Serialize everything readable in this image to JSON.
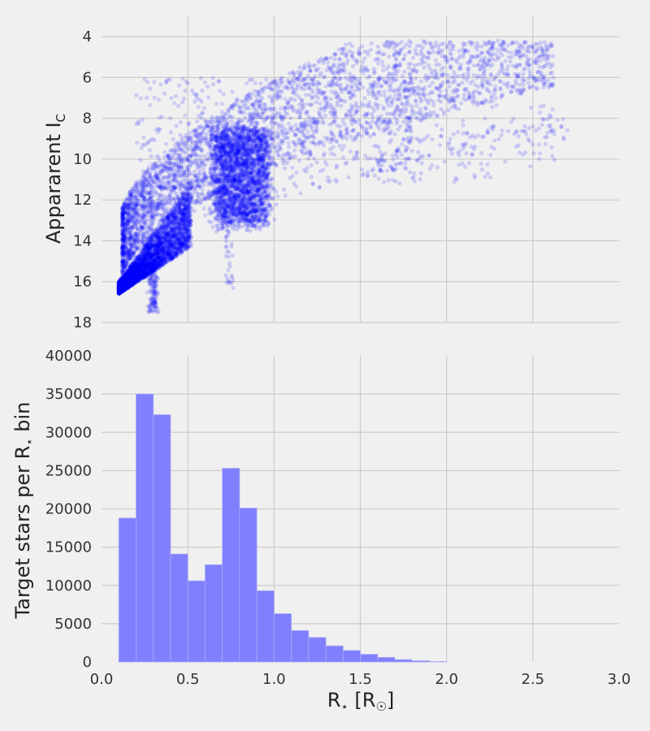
{
  "colors": {
    "figure_background": "#f0f0f0",
    "grid": "#cbcbcb",
    "scatter_points": "#0000ff",
    "histogram_bars": "#8080ff"
  },
  "chart_data": [
    {
      "type": "scatter",
      "title": "",
      "xlabel": "",
      "ylabel": {
        "main": "Appararent I",
        "subscript": "C"
      },
      "xlim": [
        0.0,
        3.0
      ],
      "ylim": [
        18,
        3
      ],
      "y_inverted": true,
      "grid": true,
      "x_ticks": [
        0.5,
        1.0,
        1.5,
        2.0,
        2.5
      ],
      "y_ticks": [
        "4",
        "6",
        "8",
        "10",
        "12",
        "14",
        "16",
        "18"
      ],
      "point_alpha": 0.15,
      "approx_point_count": 9000,
      "point_clusters": [
        {
          "description": "dense low-radius sequence",
          "x_range": [
            0.1,
            0.5
          ],
          "y_range": [
            9.5,
            16.5
          ]
        },
        {
          "description": "dense clump near R=0.7-0.9",
          "x_range": [
            0.6,
            0.95
          ],
          "y_range": [
            8,
            13
          ]
        },
        {
          "description": "faint outliers near R=0.3",
          "x_range": [
            0.28,
            0.35
          ],
          "y_range": [
            15,
            17.5
          ]
        },
        {
          "description": "faint outliers near R=0.7-0.8",
          "x_range": [
            0.68,
            0.78
          ],
          "y_range": [
            13.5,
            16.5
          ]
        },
        {
          "description": "upper trend to large radii",
          "x_range": [
            1.0,
            2.7
          ],
          "y_range": [
            5,
            11
          ]
        }
      ]
    },
    {
      "type": "bar",
      "title": "",
      "xlabel": {
        "main": "R",
        "star": "⋆",
        "bracket_open": " [R",
        "sun": "☉",
        "bracket_close": "]"
      },
      "ylabel": {
        "main": "Target stars per R",
        "star": "⋆",
        "suffix": " bin"
      },
      "xlim": [
        0.0,
        3.0
      ],
      "ylim": [
        0,
        40000
      ],
      "grid": true,
      "x_ticks": [
        "0.0",
        "0.5",
        "1.0",
        "1.5",
        "2.0",
        "2.5",
        "3.0"
      ],
      "y_ticks": [
        "0",
        "5000",
        "10000",
        "15000",
        "20000",
        "25000",
        "30000",
        "35000",
        "40000"
      ],
      "bin_width": 0.1,
      "bin_starts": [
        0.1,
        0.2,
        0.3,
        0.4,
        0.5,
        0.6,
        0.7,
        0.8,
        0.9,
        1.0,
        1.1,
        1.2,
        1.3,
        1.4,
        1.5,
        1.6,
        1.7,
        1.8,
        1.9
      ],
      "values": [
        18800,
        35000,
        32300,
        14100,
        10600,
        12700,
        25300,
        20100,
        9300,
        6300,
        4100,
        3200,
        2100,
        1500,
        1000,
        600,
        300,
        150,
        50
      ]
    }
  ]
}
